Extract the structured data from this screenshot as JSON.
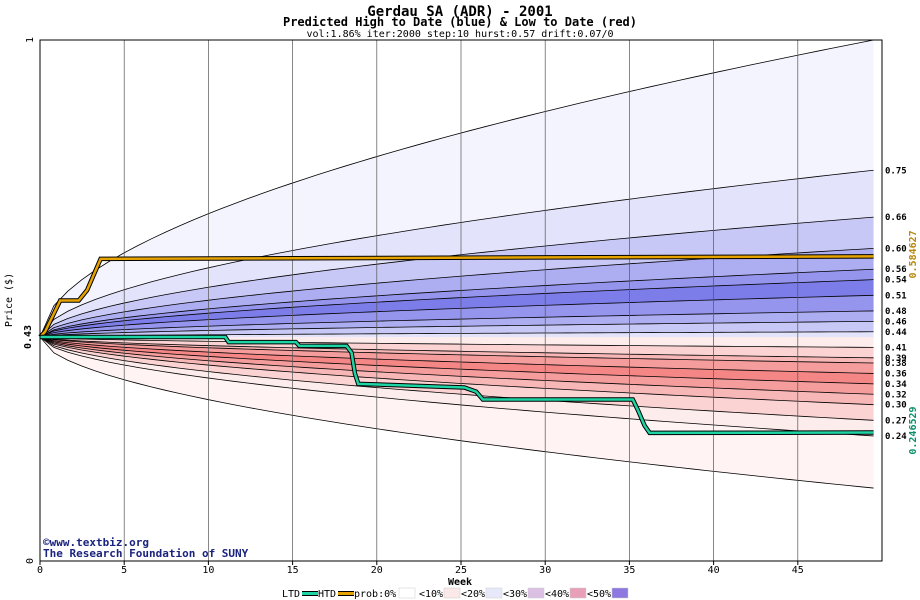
{
  "chart_data": {
    "type": "area",
    "title": "Gerdau SA (ADR) - 2001",
    "subtitle": "Predicted High to Date (blue) &  Low to Date (red)",
    "params": "vol:1.86% iter:2000 step:10 hurst:0.57 drift:0.07/0",
    "xlabel": "Week",
    "ylabel": "Price ($)",
    "xlim": [
      0,
      50
    ],
    "ylim": [
      0,
      1
    ],
    "x_ticks": [
      0,
      5,
      10,
      15,
      20,
      25,
      30,
      35,
      40,
      45
    ],
    "y_ticks": [
      0,
      1
    ],
    "y_tick_labels": [
      "0",
      "1"
    ],
    "start_price": 0.43,
    "start_price_label": "0.43",
    "grid": true,
    "right_labels": [
      "0.75",
      "0.66",
      "0.60",
      "0.56",
      "0.54",
      "0.51",
      "0.48",
      "0.46",
      "0.44",
      "0.41",
      "0.39",
      "0.38",
      "0.36",
      "0.34",
      "0.32",
      "0.30",
      "0.27",
      "0.24"
    ],
    "high_bands": [
      {
        "prob": "0%",
        "edge": 1.0,
        "color": "#f4f4ff"
      },
      {
        "prob": "10%",
        "edge": 0.75,
        "color": "#e3e3fb"
      },
      {
        "prob": "20%",
        "edge": 0.66,
        "color": "#c8c8f6"
      },
      {
        "prob": "30%",
        "edge": 0.6,
        "color": "#adadf1"
      },
      {
        "prob": "40%",
        "edge": 0.56,
        "color": "#9595ee"
      },
      {
        "prob": "50%",
        "edge": 0.54,
        "color": "#7d7dea"
      },
      {
        "prob": "40%",
        "edge": 0.51,
        "color": "#9595ee"
      },
      {
        "prob": "30%",
        "edge": 0.48,
        "color": "#adadf1"
      },
      {
        "prob": "20%",
        "edge": 0.46,
        "color": "#c8c8f6"
      },
      {
        "prob": "10%",
        "edge": 0.44,
        "color": "#e3e3fb"
      }
    ],
    "low_bands": [
      {
        "prob": "10%",
        "edge": 0.41,
        "color": "#fdecec"
      },
      {
        "prob": "20%",
        "edge": 0.39,
        "color": "#fbd3d3"
      },
      {
        "prob": "30%",
        "edge": 0.38,
        "color": "#f8b7b7"
      },
      {
        "prob": "40%",
        "edge": 0.36,
        "color": "#f59c9c"
      },
      {
        "prob": "50%",
        "edge": 0.34,
        "color": "#f48686"
      },
      {
        "prob": "40%",
        "edge": 0.32,
        "color": "#f59c9c"
      },
      {
        "prob": "30%",
        "edge": 0.3,
        "color": "#f8b7b7"
      },
      {
        "prob": "20%",
        "edge": 0.27,
        "color": "#fbd3d3"
      },
      {
        "prob": "10%",
        "edge": 0.24,
        "color": "#fdecec"
      },
      {
        "prob": "0%",
        "edge": 0.14,
        "color": "#fff3f3"
      }
    ],
    "series": [
      {
        "name": "HTD",
        "color": "#e6a300",
        "final_value": 0.584627,
        "final_label": "0.584627",
        "points": [
          [
            0,
            0.43
          ],
          [
            0.3,
            0.44
          ],
          [
            0.6,
            0.46
          ],
          [
            0.9,
            0.48
          ],
          [
            1.2,
            0.5
          ],
          [
            2.3,
            0.5
          ],
          [
            2.8,
            0.52
          ],
          [
            3.2,
            0.55
          ],
          [
            3.6,
            0.58
          ],
          [
            49.5,
            0.584627
          ]
        ]
      },
      {
        "name": "LTD",
        "color": "#1fd4a4",
        "final_value": 0.246529,
        "final_label": "0.246529",
        "points": [
          [
            0,
            0.43
          ],
          [
            11,
            0.43
          ],
          [
            11.2,
            0.42
          ],
          [
            15.2,
            0.42
          ],
          [
            15.4,
            0.413
          ],
          [
            18.2,
            0.413
          ],
          [
            18.5,
            0.4
          ],
          [
            18.7,
            0.36
          ],
          [
            18.9,
            0.34
          ],
          [
            25.2,
            0.333
          ],
          [
            25.9,
            0.325
          ],
          [
            26.3,
            0.31
          ],
          [
            35.2,
            0.31
          ],
          [
            35.5,
            0.29
          ],
          [
            35.9,
            0.26
          ],
          [
            36.2,
            0.246
          ],
          [
            49.5,
            0.246529
          ]
        ]
      }
    ],
    "legend": {
      "placement": "bottom",
      "items": [
        "LTD",
        "HTD",
        "prob:0%",
        "<10%",
        "<20%",
        "<30%",
        "<40%",
        "<50%"
      ],
      "colors": [
        "#1fd4a4",
        "#e6a300",
        "#ffffff",
        "#fbe8e8",
        "#e8e8fb",
        "#dcc0e4",
        "#e8a0b8",
        "#8c78e0"
      ]
    },
    "credits": [
      "©www.textbiz.org",
      "The Research Foundation of SUNY"
    ]
  }
}
